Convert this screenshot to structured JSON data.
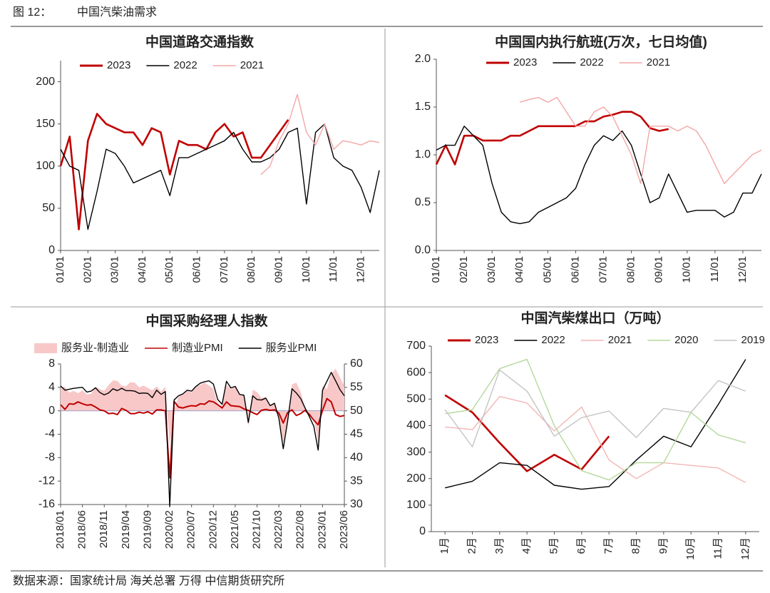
{
  "header": {
    "figure": "图 12：",
    "title": "中国汽柴油需求"
  },
  "source": "数据来源：国家统计局  海关总署  万得  中信期货研究所",
  "chart_data": [
    {
      "type": "line",
      "title": "中国道路交通指数",
      "categories": [
        "01/01",
        null,
        null,
        "02/01",
        null,
        null,
        "03/01",
        null,
        null,
        "04/01",
        null,
        null,
        "05/01",
        null,
        null,
        "06/01",
        null,
        null,
        "07/01",
        null,
        null,
        "08/01",
        null,
        null,
        "09/01",
        null,
        null,
        "10/01",
        null,
        null,
        "11/01",
        null,
        null,
        "12/01",
        null,
        null
      ],
      "ylim": [
        0,
        225
      ],
      "yticks": [
        0,
        50,
        100,
        150,
        200
      ],
      "series": [
        {
          "name": "2023",
          "color": "#c00000",
          "values": [
            100,
            135,
            25,
            130,
            162,
            150,
            145,
            140,
            140,
            125,
            145,
            140,
            90,
            130,
            125,
            125,
            120,
            140,
            150,
            135,
            140,
            110,
            110,
            125,
            140,
            155,
            null,
            null,
            null,
            null,
            null,
            null,
            null,
            null,
            null,
            null
          ]
        },
        {
          "name": "2022",
          "color": "#000000",
          "values": [
            120,
            100,
            95,
            25,
            70,
            120,
            115,
            100,
            80,
            85,
            90,
            95,
            65,
            110,
            110,
            115,
            120,
            125,
            130,
            140,
            120,
            105,
            105,
            110,
            120,
            140,
            145,
            55,
            140,
            150,
            110,
            100,
            95,
            75,
            45,
            95
          ]
        },
        {
          "name": "2021",
          "color": "#f4a6a6",
          "values": [
            null,
            null,
            null,
            null,
            null,
            null,
            null,
            null,
            null,
            null,
            null,
            null,
            null,
            null,
            null,
            null,
            null,
            null,
            null,
            null,
            null,
            null,
            90,
            100,
            130,
            150,
            185,
            140,
            125,
            150,
            120,
            130,
            128,
            125,
            130,
            128
          ]
        }
      ]
    },
    {
      "type": "line",
      "title": "中国国内执行航班(万次，七日均值)",
      "categories": [
        "01/01",
        null,
        null,
        "02/01",
        null,
        null,
        "03/01",
        null,
        null,
        "04/01",
        null,
        null,
        "05/01",
        null,
        null,
        "06/01",
        null,
        null,
        "07/01",
        null,
        null,
        "08/01",
        null,
        null,
        "09/01",
        null,
        null,
        "10/01",
        null,
        null,
        "11/01",
        null,
        null,
        "12/01",
        null,
        null
      ],
      "ylim": [
        0,
        2
      ],
      "yticks": [
        {
          "value": 0,
          "label": "0.0"
        },
        {
          "value": 0.5,
          "label": "0.5"
        },
        {
          "value": 1,
          "label": "1.0"
        },
        {
          "value": 1.5,
          "label": "1.5"
        },
        {
          "value": 2,
          "label": "2.0"
        }
      ],
      "series": [
        {
          "name": "2023",
          "color": "#c00000",
          "values": [
            0.9,
            1.1,
            0.9,
            1.2,
            1.2,
            1.15,
            1.15,
            1.15,
            1.2,
            1.2,
            1.25,
            1.3,
            1.3,
            1.3,
            1.3,
            1.3,
            1.35,
            1.35,
            1.4,
            1.42,
            1.45,
            1.45,
            1.4,
            1.28,
            1.25,
            1.27,
            null,
            null,
            null,
            null,
            null,
            null,
            null,
            null,
            null,
            null
          ]
        },
        {
          "name": "2022",
          "color": "#000000",
          "values": [
            1.05,
            1.1,
            1.1,
            1.3,
            1.2,
            1.1,
            0.7,
            0.4,
            0.3,
            0.28,
            0.3,
            0.4,
            0.45,
            0.5,
            0.55,
            0.65,
            0.9,
            1.1,
            1.2,
            1.15,
            1.25,
            1.1,
            0.8,
            0.5,
            0.55,
            0.8,
            0.6,
            0.4,
            0.42,
            0.42,
            0.42,
            0.35,
            0.4,
            0.6,
            0.6,
            0.8
          ]
        },
        {
          "name": "2021",
          "color": "#f4a6a6",
          "values": [
            null,
            null,
            null,
            null,
            null,
            null,
            null,
            null,
            null,
            1.55,
            1.58,
            1.6,
            1.55,
            1.6,
            1.45,
            1.3,
            1.3,
            1.45,
            1.5,
            1.4,
            1.2,
            1.0,
            0.7,
            1.3,
            1.3,
            1.3,
            1.25,
            1.3,
            1.25,
            1.1,
            0.9,
            0.7,
            0.8,
            0.9,
            1.0,
            1.05
          ]
        }
      ]
    },
    {
      "type": "line",
      "title": "中国采购经理人指数",
      "categories": [
        "2018/01",
        null,
        null,
        null,
        null,
        "2018/06",
        null,
        null,
        null,
        null,
        "2018/11",
        null,
        null,
        null,
        null,
        "2019/04",
        null,
        null,
        null,
        null,
        "2019/09",
        null,
        null,
        null,
        null,
        "2020/02",
        null,
        null,
        null,
        null,
        "2020/07",
        null,
        null,
        null,
        null,
        "2020/12",
        null,
        null,
        null,
        null,
        "2021/05",
        null,
        null,
        null,
        null,
        "2021/10",
        null,
        null,
        null,
        null,
        "2022/03",
        null,
        null,
        null,
        null,
        "2022/08",
        null,
        null,
        null,
        null,
        "2023/01",
        null,
        null,
        null,
        null,
        "2023/06"
      ],
      "ylim": [
        -16,
        8
      ],
      "yticks": [
        8,
        4,
        0,
        -4,
        -8,
        -12,
        -16
      ],
      "y2lim": [
        30,
        60
      ],
      "y2ticks": [
        60,
        55,
        50,
        45,
        40,
        35,
        30
      ],
      "series": [
        {
          "name": "服务业-制造业",
          "type": "area",
          "color": "#f8c8c8",
          "values": [
            4.0,
            4.1,
            3.1,
            3.4,
            3.0,
            3.5,
            2.8,
            2.9,
            4.1,
            3.7,
            3.4,
            4.4,
            5.2,
            5.1,
            4.3,
            4.2,
            4.9,
            4.8,
            4.0,
            4.3,
            3.9,
            3.5,
            4.2,
            3.3,
            4.1,
            -6.1,
            0.3,
            2.4,
            3.0,
            3.5,
            3.1,
            4.2,
            4.4,
            4.8,
            4.3,
            3.8,
            1.1,
            0.8,
            4.4,
            3.8,
            4.2,
            2.6,
            2.9,
            -2.6,
            3.6,
            3.2,
            2.2,
            2.4,
            1.0,
            1.4,
            -1.1,
            -5.5,
            -1.8,
            4.5,
            4.8,
            3.2,
            0.5,
            -0.5,
            -1.3,
            -5.4,
            4.3,
            3.7,
            6.3,
            7.2,
            5.7,
            4.2
          ]
        },
        {
          "name": "制造业PMI",
          "axis": "y2",
          "color": "#c00000",
          "values": [
            51.3,
            50.3,
            51.5,
            51.4,
            51.9,
            51.5,
            51.2,
            51.3,
            50.8,
            50.2,
            50.0,
            49.4,
            49.5,
            49.2,
            50.5,
            50.1,
            49.4,
            49.4,
            49.7,
            49.5,
            49.8,
            49.3,
            50.2,
            50.2,
            50.0,
            35.7,
            52.0,
            50.8,
            50.6,
            50.9,
            51.1,
            51.0,
            51.5,
            51.4,
            52.1,
            51.9,
            51.3,
            50.6,
            51.9,
            51.1,
            51.0,
            50.9,
            50.4,
            50.1,
            49.6,
            49.2,
            50.1,
            50.3,
            50.1,
            50.2,
            49.5,
            47.4,
            49.6,
            50.2,
            49.0,
            49.4,
            50.1,
            49.2,
            48.0,
            47.0,
            50.1,
            52.6,
            51.9,
            49.2,
            48.8,
            49.0
          ]
        },
        {
          "name": "服务业PMI",
          "axis": "y2",
          "color": "#000000",
          "values": [
            55.3,
            54.4,
            54.6,
            54.8,
            54.9,
            55.0,
            54.0,
            54.2,
            54.9,
            53.9,
            53.4,
            53.8,
            54.7,
            54.3,
            54.8,
            54.3,
            54.3,
            54.2,
            53.7,
            53.8,
            53.7,
            52.8,
            54.4,
            53.5,
            54.1,
            29.6,
            52.3,
            53.2,
            53.6,
            54.4,
            54.2,
            55.2,
            55.9,
            56.2,
            56.4,
            55.7,
            52.4,
            51.4,
            56.3,
            54.9,
            55.2,
            53.5,
            53.3,
            47.5,
            53.2,
            52.4,
            52.3,
            52.7,
            51.1,
            51.6,
            48.4,
            41.9,
            47.8,
            54.7,
            53.8,
            52.6,
            50.6,
            48.7,
            46.7,
            41.6,
            54.4,
            56.3,
            58.2,
            56.4,
            54.5,
            53.2
          ]
        }
      ]
    },
    {
      "type": "line",
      "title": "中国汽柴煤出口（万吨）",
      "categories": [
        "1月",
        "2月",
        "3月",
        "4月",
        "5月",
        "6月",
        "7月",
        "8月",
        "9月",
        "10月",
        "11月",
        "12月"
      ],
      "ylim": [
        0,
        700
      ],
      "yticks": [
        0,
        100,
        200,
        300,
        400,
        500,
        600,
        700
      ],
      "series": [
        {
          "name": "2023",
          "color": "#c00000",
          "values": [
            515,
            450,
            335,
            228,
            290,
            235,
            360,
            null,
            null,
            null,
            null,
            null
          ]
        },
        {
          "name": "2022",
          "color": "#000000",
          "values": [
            165,
            190,
            260,
            250,
            175,
            160,
            170,
            270,
            360,
            320,
            480,
            650
          ]
        },
        {
          "name": "2021",
          "color": "#f4b6b6",
          "values": [
            395,
            385,
            510,
            485,
            380,
            470,
            270,
            200,
            260,
            250,
            240,
            185
          ]
        },
        {
          "name": "2020",
          "color": "#b5d99c",
          "values": [
            445,
            460,
            615,
            650,
            400,
            230,
            195,
            260,
            260,
            450,
            365,
            335
          ]
        },
        {
          "name": "2019",
          "color": "#c4c4c4",
          "values": [
            460,
            320,
            610,
            530,
            360,
            430,
            455,
            355,
            465,
            450,
            570,
            530
          ]
        }
      ]
    }
  ]
}
